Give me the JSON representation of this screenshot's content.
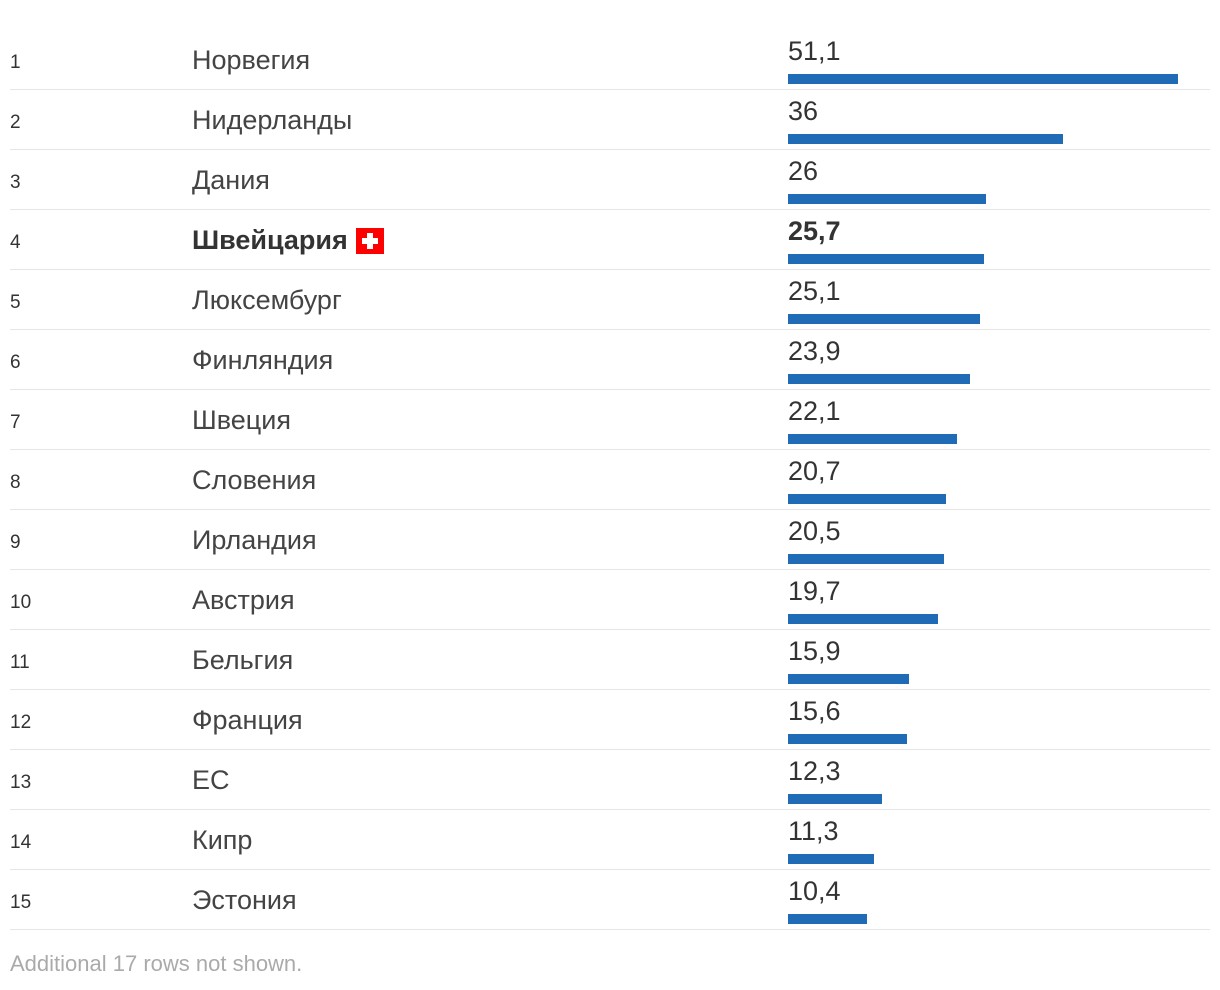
{
  "chart_data": {
    "type": "bar",
    "orientation": "horizontal",
    "categories": [
      "Норвегия",
      "Нидерланды",
      "Дания",
      "Швейцария",
      "Люксембург",
      "Финляндия",
      "Швеция",
      "Словения",
      "Ирландия",
      "Австрия",
      "Бельгия",
      "Франция",
      "ЕС",
      "Кипр",
      "Эстония"
    ],
    "ranks": [
      "1",
      "2",
      "3",
      "4",
      "5",
      "6",
      "7",
      "8",
      "9",
      "10",
      "11",
      "12",
      "13",
      "14",
      "15"
    ],
    "values": [
      51.1,
      36,
      26,
      25.7,
      25.1,
      23.9,
      22.1,
      20.7,
      20.5,
      19.7,
      15.9,
      15.6,
      12.3,
      11.3,
      10.4
    ],
    "value_labels": [
      "51,1",
      "36",
      "26",
      "25,7",
      "25,1",
      "23,9",
      "22,1",
      "20,7",
      "20,5",
      "19,7",
      "15,9",
      "15,6",
      "12,3",
      "11,3",
      "10,4"
    ],
    "highlight_index": 3,
    "highlight_icon": "swiss-flag-icon",
    "xlim": [
      0,
      51.1
    ],
    "bar_color": "#1f6bb6"
  },
  "footer": {
    "note": "Additional 17 rows not shown."
  }
}
